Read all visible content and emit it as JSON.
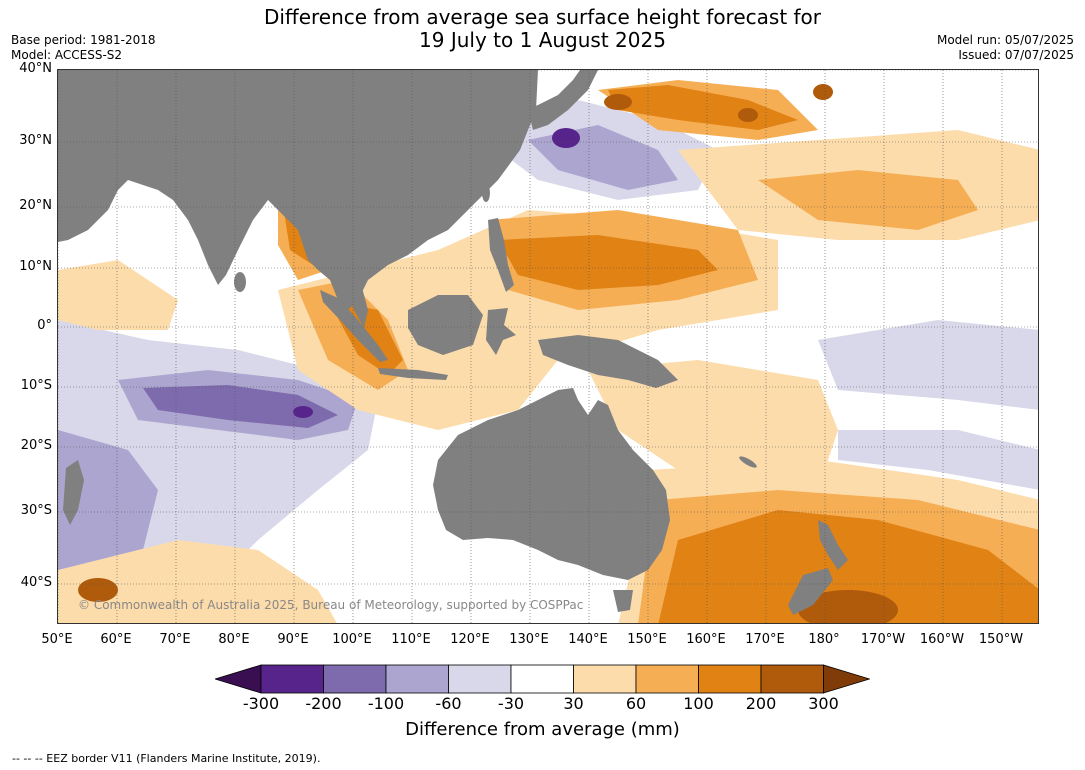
{
  "header": {
    "title_line1": "Difference from average sea surface height forecast for",
    "title_line2": "19 July to 1 August 2025",
    "base_period": "Base period: 1981-2018",
    "model": "Model: ACCESS-S2",
    "model_run": "Model run: 05/07/2025",
    "issued": "Issued: 07/07/2025"
  },
  "map": {
    "lat_labels": [
      "40°N",
      "30°N",
      "20°N",
      "10°N",
      "0°",
      "10°S",
      "20°S",
      "30°S",
      "40°S"
    ],
    "lon_labels": [
      "50°E",
      "60°E",
      "70°E",
      "80°E",
      "90°E",
      "100°E",
      "110°E",
      "120°E",
      "130°E",
      "140°E",
      "150°E",
      "160°E",
      "170°E",
      "180°",
      "170°W",
      "160°W",
      "150°W"
    ],
    "land_color": "#808080",
    "copyright": "© Commonwealth of Australia 2025, Bureau of Meteorology, supported by COSPPac"
  },
  "colorbar": {
    "ticks": [
      "-300",
      "-200",
      "-100",
      "-60",
      "-30",
      "30",
      "60",
      "100",
      "200",
      "300"
    ],
    "colors": [
      "#3a0f52",
      "#56248a",
      "#7d6bad",
      "#aba5cf",
      "#d8d8ea",
      "#ffffff",
      "#fddcab",
      "#f6ae55",
      "#e08214",
      "#b05a0c",
      "#7f3b08"
    ],
    "label": "Difference from average (mm)"
  },
  "footnote": "--  --  -- EEZ border V11 (Flanders Marine Institute, 2019)."
}
